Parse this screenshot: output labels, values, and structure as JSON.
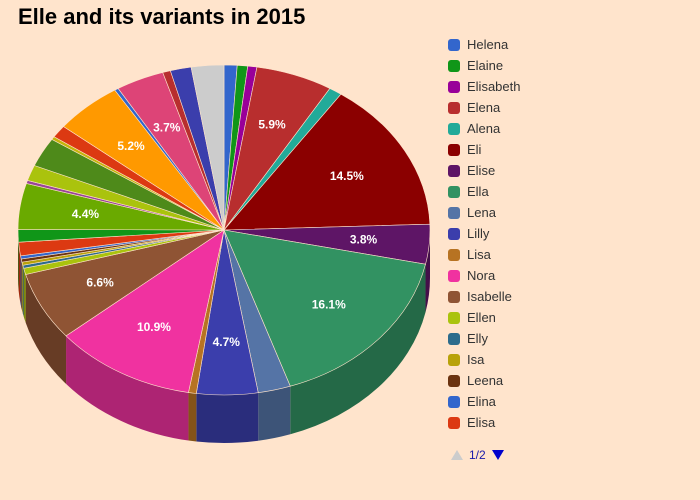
{
  "chart_data": {
    "type": "pie",
    "title": "Elle and its variants in 2015",
    "slices": [
      {
        "name": "Helena",
        "value": 1.0,
        "color": "#3366cc"
      },
      {
        "name": "Elaine",
        "value": 0.8,
        "color": "#109618"
      },
      {
        "name": "Elisabeth",
        "value": 0.7,
        "color": "#990099"
      },
      {
        "name": "Elena",
        "value": 5.9,
        "color": "#b82e2e"
      },
      {
        "name": "Alena",
        "value": 1.0,
        "color": "#22aa99"
      },
      {
        "name": "Eli",
        "value": 14.5,
        "color": "#8b0000"
      },
      {
        "name": "Elise",
        "value": 3.8,
        "color": "#5e1566"
      },
      {
        "name": "Ella",
        "value": 16.1,
        "color": "#329262"
      },
      {
        "name": "Lena",
        "value": 2.5,
        "color": "#5574a6"
      },
      {
        "name": "Lilly",
        "value": 4.7,
        "color": "#3b3eac"
      },
      {
        "name": "Lisa",
        "value": 0.6,
        "color": "#b77322"
      },
      {
        "name": "Nora",
        "value": 10.9,
        "color": "#f032a0"
      },
      {
        "name": "Isabelle",
        "value": 6.6,
        "color": "#8f5434"
      },
      {
        "name": "Ellen",
        "value": 0.6,
        "color": "#aac30d"
      },
      {
        "name": "Elly",
        "value": 0.3,
        "color": "#2d6c8c"
      },
      {
        "name": "Isa",
        "value": 0.3,
        "color": "#b8a20a"
      },
      {
        "name": "Leena",
        "value": 0.3,
        "color": "#6b3310"
      },
      {
        "name": "Elina",
        "value": 0.3,
        "color": "#3366cc"
      },
      {
        "name": "Elisa",
        "value": 1.3,
        "color": "#dc3912"
      },
      {
        "name": "",
        "value": 1.2,
        "color": "#109618"
      },
      {
        "name": "",
        "value": 4.4,
        "color": "#6aaa00"
      },
      {
        "name": "",
        "value": 0.3,
        "color": "#994499"
      },
      {
        "name": "",
        "value": 1.5,
        "color": "#aac30d"
      },
      {
        "name": "",
        "value": 2.8,
        "color": "#4e8a1a"
      },
      {
        "name": "",
        "value": 0.3,
        "color": "#c6b40b"
      },
      {
        "name": "",
        "value": 1.2,
        "color": "#dc3912"
      },
      {
        "name": "",
        "value": 5.2,
        "color": "#ff9900"
      },
      {
        "name": "",
        "value": 0.3,
        "color": "#3366cc"
      },
      {
        "name": "",
        "value": 3.7,
        "color": "#dd4477"
      },
      {
        "name": "",
        "value": 0.6,
        "color": "#b82e2e"
      },
      {
        "name": "",
        "value": 1.6,
        "color": "#3b3eac"
      },
      {
        "name": "",
        "value": 2.5,
        "color": "#cccccc"
      }
    ],
    "labeled_percents": [
      "5.9%",
      "14.5%",
      "3.8%",
      "16.1%",
      "4.7%",
      "10.9%",
      "6.6%",
      "4.4%",
      "5.2%",
      "3.7%"
    ],
    "legend": {
      "items": [
        "Helena",
        "Elaine",
        "Elisabeth",
        "Elena",
        "Alena",
        "Eli",
        "Elise",
        "Ella",
        "Lena",
        "Lilly",
        "Lisa",
        "Nora",
        "Isabelle",
        "Ellen",
        "Elly",
        "Isa",
        "Leena",
        "Elina",
        "Elisa"
      ],
      "placement": "right"
    }
  },
  "pager": {
    "text": "1/2"
  }
}
